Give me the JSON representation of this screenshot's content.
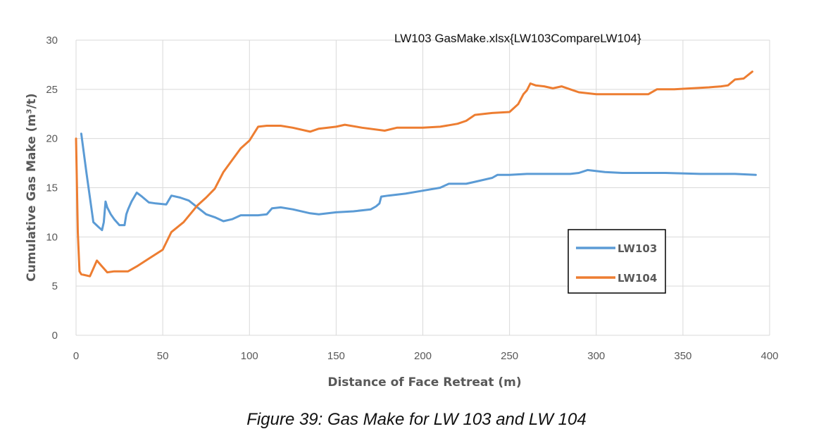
{
  "caption": "Figure 39: Gas Make for LW 103 and LW 104",
  "chart_data": {
    "type": "line",
    "title": "",
    "annotation": "LW103 GasMake.xlsx{LW103CompareLW104}",
    "xlabel": "Distance of Face Retreat (m)",
    "ylabel": "Cumulative Gas Make (m³/t)",
    "xlim": [
      0,
      400
    ],
    "ylim": [
      0,
      30
    ],
    "xticks": [
      0,
      50,
      100,
      150,
      200,
      250,
      300,
      350,
      400
    ],
    "yticks": [
      0,
      5,
      10,
      15,
      20,
      25,
      30
    ],
    "grid": true,
    "legend_position": "right-center",
    "series": [
      {
        "name": "LW103",
        "color": "#5b9bd5",
        "x": [
          3,
          6,
          10,
          13,
          15,
          16,
          17,
          18,
          20,
          22,
          25,
          28,
          29,
          30,
          32,
          35,
          38,
          42,
          46,
          52,
          55,
          60,
          65,
          70,
          75,
          80,
          85,
          90,
          95,
          100,
          105,
          110,
          113,
          118,
          125,
          135,
          140,
          150,
          160,
          170,
          173,
          175,
          176,
          180,
          190,
          200,
          210,
          215,
          220,
          225,
          230,
          240,
          243,
          250,
          260,
          275,
          285,
          290,
          295,
          305,
          315,
          325,
          340,
          360,
          380,
          392
        ],
        "y": [
          20.5,
          16.5,
          11.5,
          11.0,
          10.7,
          11.5,
          13.6,
          13.0,
          12.3,
          11.8,
          11.2,
          11.2,
          12.3,
          12.8,
          13.6,
          14.5,
          14.1,
          13.5,
          13.4,
          13.3,
          14.2,
          14.0,
          13.7,
          13.0,
          12.3,
          12.0,
          11.6,
          11.8,
          12.2,
          12.2,
          12.2,
          12.3,
          12.9,
          13.0,
          12.8,
          12.4,
          12.3,
          12.5,
          12.6,
          12.8,
          13.1,
          13.4,
          14.1,
          14.2,
          14.4,
          14.7,
          15.0,
          15.4,
          15.4,
          15.4,
          15.6,
          16.0,
          16.3,
          16.3,
          16.4,
          16.4,
          16.4,
          16.5,
          16.8,
          16.6,
          16.5,
          16.5,
          16.5,
          16.4,
          16.4,
          16.3
        ]
      },
      {
        "name": "LW104",
        "color": "#ed7d31",
        "x": [
          0,
          1,
          2,
          3,
          8,
          12,
          15,
          18,
          22,
          30,
          35,
          42,
          50,
          55,
          62,
          70,
          75,
          80,
          85,
          90,
          95,
          100,
          105,
          110,
          118,
          125,
          135,
          140,
          150,
          155,
          165,
          178,
          185,
          195,
          200,
          210,
          220,
          225,
          230,
          240,
          250,
          255,
          258,
          260,
          262,
          265,
          270,
          275,
          280,
          285,
          290,
          300,
          310,
          320,
          330,
          335,
          345,
          355,
          365,
          372,
          376,
          380,
          385,
          390
        ],
        "y": [
          20.0,
          10.5,
          6.5,
          6.2,
          6.0,
          7.6,
          7.0,
          6.4,
          6.5,
          6.5,
          7.0,
          7.8,
          8.7,
          10.5,
          11.5,
          13.2,
          14.0,
          14.9,
          16.6,
          17.8,
          19.0,
          19.8,
          21.2,
          21.3,
          21.3,
          21.1,
          20.7,
          21.0,
          21.2,
          21.4,
          21.1,
          20.8,
          21.1,
          21.1,
          21.1,
          21.2,
          21.5,
          21.8,
          22.4,
          22.6,
          22.7,
          23.5,
          24.5,
          24.9,
          25.6,
          25.4,
          25.3,
          25.1,
          25.3,
          25.0,
          24.7,
          24.5,
          24.5,
          24.5,
          24.5,
          25.0,
          25.0,
          25.1,
          25.2,
          25.3,
          25.4,
          26.0,
          26.1,
          26.8
        ]
      }
    ]
  }
}
